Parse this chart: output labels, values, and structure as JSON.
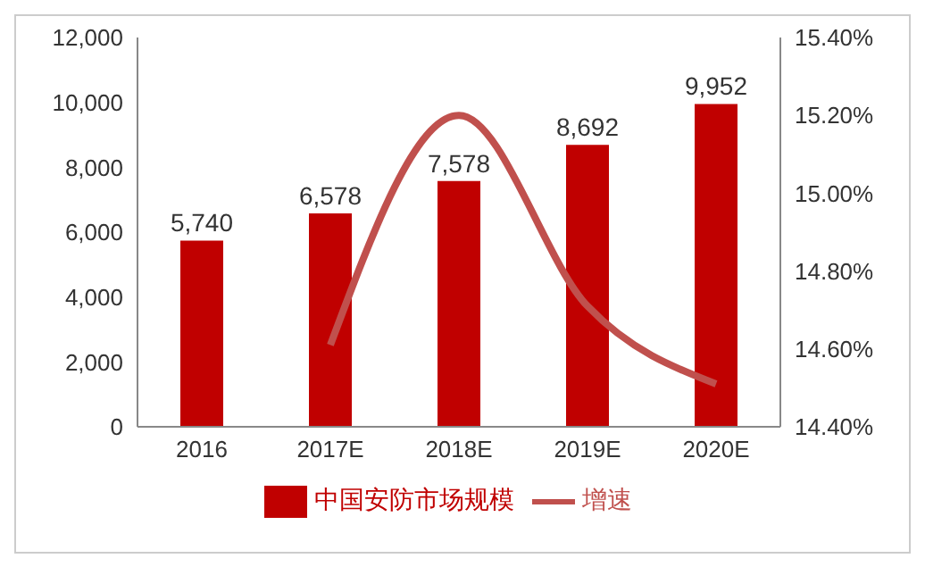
{
  "chart_data": {
    "type": "bar",
    "categories": [
      "2016",
      "2017E",
      "2018E",
      "2019E",
      "2020E"
    ],
    "series": [
      {
        "name": "中国安防市场规模",
        "color": "#c00000",
        "values": [
          5740,
          6578,
          7578,
          8692,
          9952
        ],
        "value_labels": [
          "5,740",
          "6,578",
          "7,578",
          "8,692",
          "9,952"
        ]
      },
      {
        "name": "增速",
        "type": "line",
        "axis": "y2",
        "color": "#c0504d",
        "values": [
          null,
          14.61,
          15.2,
          14.71,
          14.51
        ]
      }
    ],
    "ylim": [
      0,
      12000
    ],
    "yticks": [
      0,
      {
        "value": 2000,
        "label": "2,000"
      },
      {
        "value": 4000,
        "label": "4,000"
      },
      {
        "value": 6000,
        "label": "6,000"
      },
      {
        "value": 8000,
        "label": "8,000"
      },
      {
        "value": 10000,
        "label": "10,000"
      },
      {
        "value": 12000,
        "label": "12,000"
      }
    ],
    "y2lim": [
      14.4,
      15.4
    ],
    "y2ticks": [
      {
        "value": 14.4,
        "label": "14.40%"
      },
      {
        "value": 14.6,
        "label": "14.60%"
      },
      {
        "value": 14.8,
        "label": "14.80%"
      },
      {
        "value": 15.0,
        "label": "15.00%"
      },
      {
        "value": 15.2,
        "label": "15.20%"
      },
      {
        "value": 15.4,
        "label": "15.40%"
      }
    ],
    "legend": "bottom",
    "grid": false,
    "marker": "none"
  }
}
